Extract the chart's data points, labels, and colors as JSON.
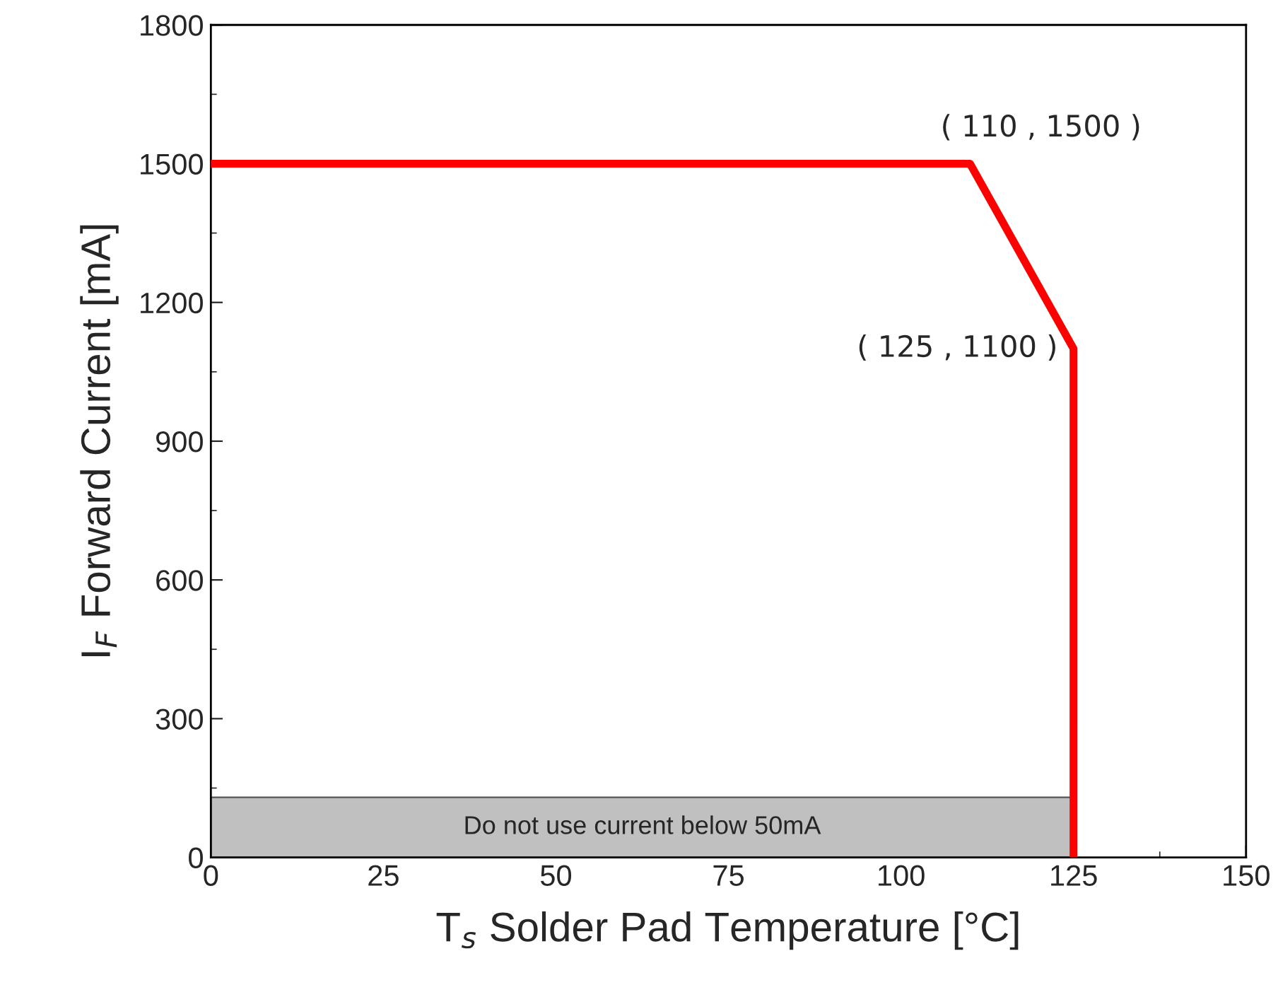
{
  "chart_data": {
    "type": "line",
    "xlabel": "T$_{s}$ Solder Pad Temperature [°C]",
    "ylabel": "I$_{F}$ Forward Current [mA]",
    "series": [
      {
        "color": "#ff0000",
        "x": [
          0,
          110,
          125,
          125
        ],
        "values": [
          1500,
          1500,
          1100,
          0
        ]
      }
    ],
    "xlim": [
      0,
      150
    ],
    "xticks": [
      0,
      25,
      50,
      75,
      100,
      125,
      150
    ],
    "ylim": [
      0,
      1800
    ],
    "yticks": [
      0,
      300,
      600,
      900,
      1200,
      1500,
      1800
    ],
    "bands": [
      {
        "axis": "y",
        "from": 0,
        "to": 130,
        "label": "Do not use current below 50mA",
        "color": "#c0c0c0"
      }
    ],
    "annotations": [
      {
        "text": "( 110 , 1500 )",
        "x": 110,
        "y": 1500
      },
      {
        "text": "( 125 , 1100 )",
        "x": 125,
        "y": 1100
      }
    ],
    "grid": false,
    "legend": false,
    "marker": "none",
    "line_style": "solid"
  }
}
